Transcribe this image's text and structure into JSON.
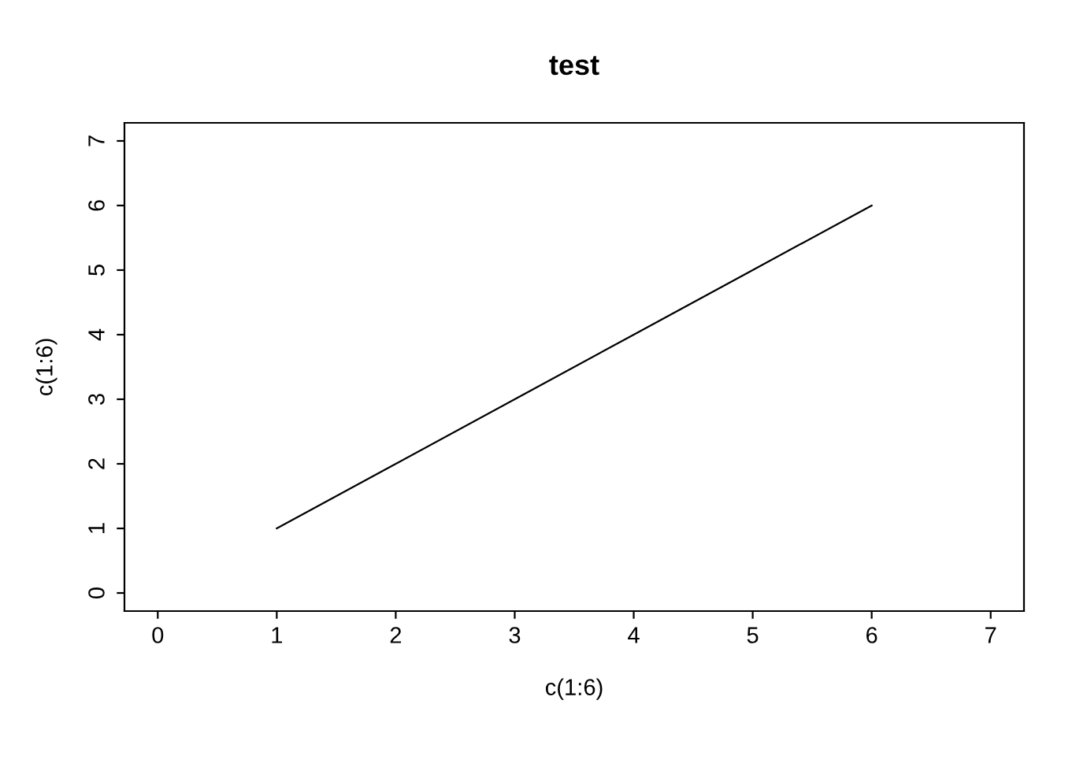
{
  "chart_data": {
    "type": "line",
    "title": "test",
    "xlabel": "c(1:6)",
    "ylabel": "c(1:6)",
    "x": [
      1,
      2,
      3,
      4,
      5,
      6
    ],
    "series": [
      {
        "color": "#000000",
        "values": [
          1,
          2,
          3,
          4,
          5,
          6
        ]
      }
    ],
    "xlim": [
      -0.28,
      7.28
    ],
    "ylim": [
      -0.28,
      7.28
    ],
    "xticks": [
      0,
      1,
      2,
      3,
      4,
      5,
      6,
      7
    ],
    "yticks": [
      0,
      1,
      2,
      3,
      4,
      5,
      6,
      7
    ],
    "grid": false,
    "legend": false,
    "marker": "none",
    "line_style": "solid"
  }
}
